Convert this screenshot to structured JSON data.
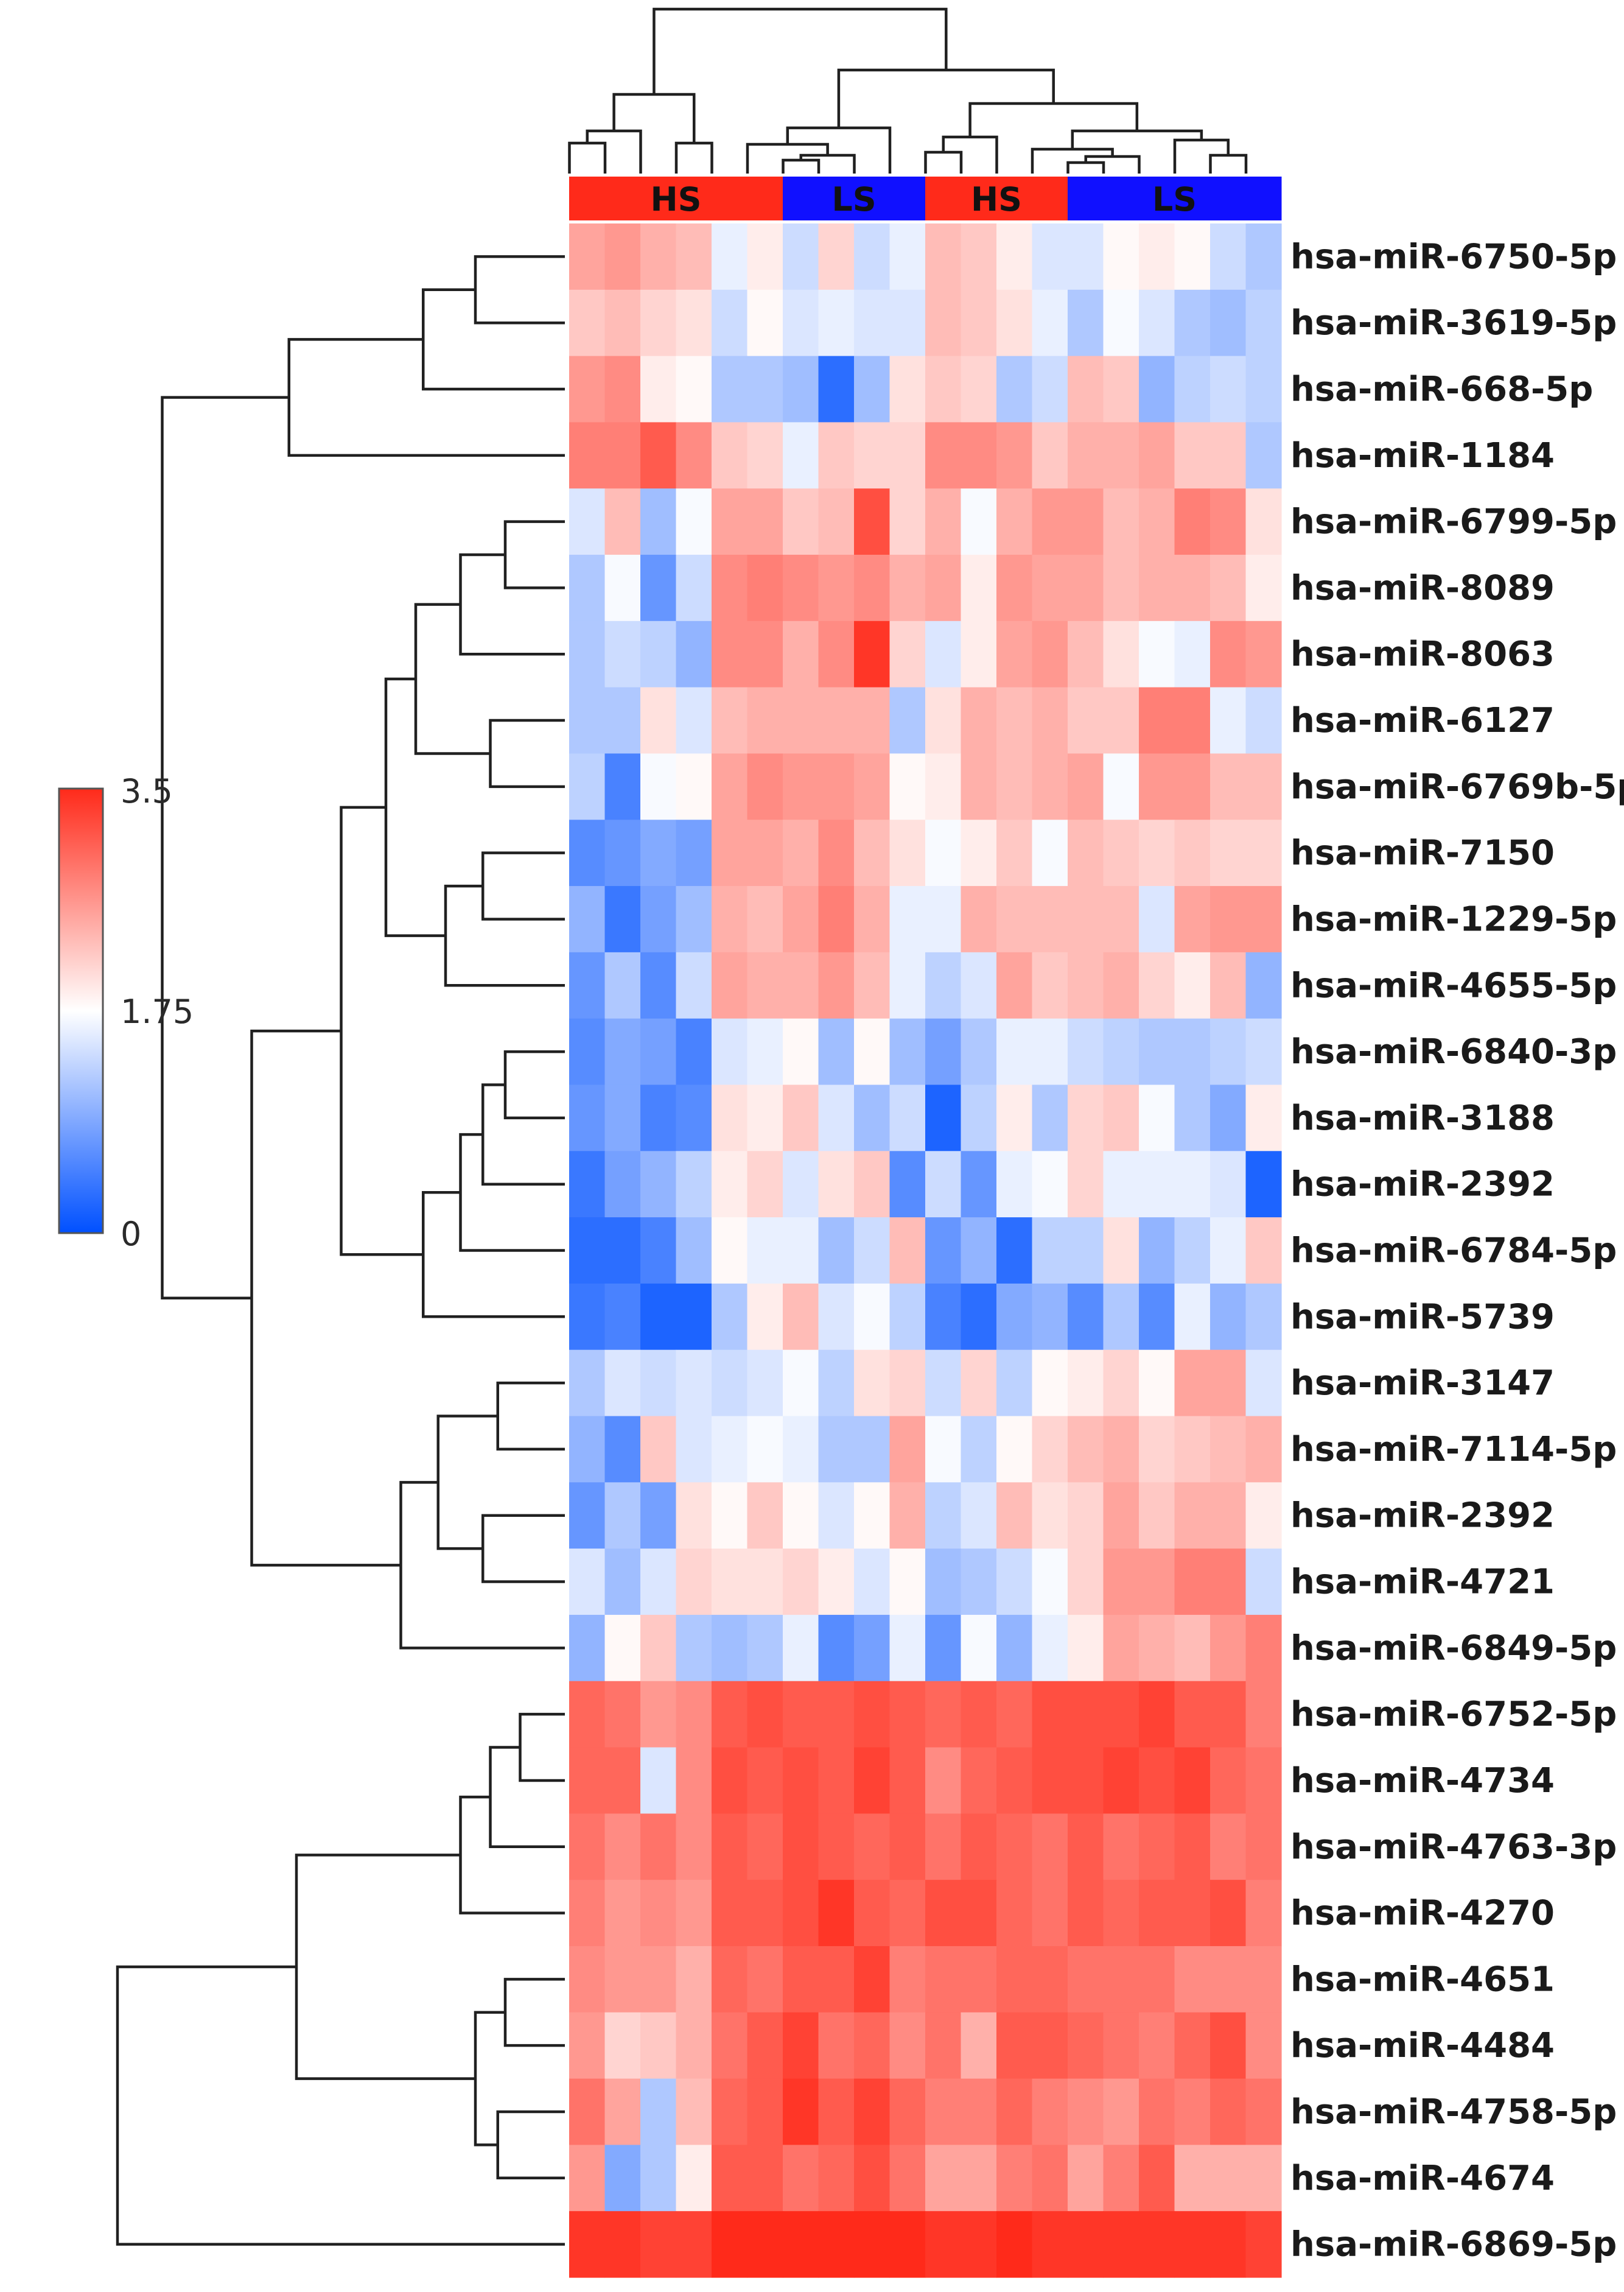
{
  "chart_data": {
    "type": "heatmap",
    "title": "",
    "xlabel": "",
    "ylabel": "",
    "color_scale": {
      "min": 0,
      "mid": 1.75,
      "max": 3.5,
      "tick_labels": [
        "3.5",
        "1.75",
        "0"
      ],
      "colors": {
        "low": "#0050ff",
        "mid": "#ffffff",
        "high": "#ff2a1a"
      }
    },
    "column_groups": [
      {
        "label": "HS",
        "columns": 6,
        "color": "#ff2a1a"
      },
      {
        "label": "LS",
        "columns": 4,
        "color": "#1010ff"
      },
      {
        "label": "HS",
        "columns": 4,
        "color": "#ff2a1a"
      },
      {
        "label": "LS",
        "columns": 6,
        "color": "#1010ff"
      }
    ],
    "rows": [
      "hsa-miR-6750-5p",
      "hsa-miR-3619-5p",
      "hsa-miR-668-5p",
      "hsa-miR-1184",
      "hsa-miR-6799-5p",
      "hsa-miR-8089",
      "hsa-miR-8063",
      "hsa-miR-6127",
      "hsa-miR-6769b-5p",
      "hsa-miR-7150",
      "hsa-miR-1229-5p",
      "hsa-miR-4655-5p",
      "hsa-miR-6840-3p",
      "hsa-miR-3188",
      "hsa-miR-2392",
      "hsa-miR-6784-5p",
      "hsa-miR-5739",
      "hsa-miR-3147",
      "hsa-miR-7114-5p",
      "hsa-miR-2392",
      "hsa-miR-4721",
      "hsa-miR-6849-5p",
      "hsa-miR-6752-5p",
      "hsa-miR-4734",
      "hsa-miR-4763-3p",
      "hsa-miR-4270",
      "hsa-miR-4651",
      "hsa-miR-4484",
      "hsa-miR-4758-5p",
      "hsa-miR-4674",
      "hsa-miR-6869-5p"
    ],
    "values": [
      [
        2.5,
        2.6,
        2.4,
        2.3,
        1.6,
        1.9,
        1.4,
        2.1,
        1.4,
        1.6,
        2.3,
        2.2,
        1.9,
        1.5,
        1.5,
        1.8,
        1.9,
        1.8,
        1.4,
        1.2
      ],
      [
        2.2,
        2.3,
        2.1,
        2.0,
        1.4,
        1.8,
        1.5,
        1.6,
        1.5,
        1.5,
        2.3,
        2.2,
        2.0,
        1.6,
        1.2,
        1.7,
        1.5,
        1.2,
        1.1,
        1.3
      ],
      [
        2.6,
        2.7,
        1.9,
        1.8,
        1.2,
        1.2,
        1.1,
        0.3,
        1.1,
        2.0,
        2.2,
        2.1,
        1.2,
        1.4,
        2.3,
        2.2,
        1.0,
        1.3,
        1.4,
        1.3
      ],
      [
        2.8,
        2.8,
        3.1,
        2.7,
        2.2,
        2.1,
        1.6,
        2.2,
        2.1,
        2.1,
        2.7,
        2.7,
        2.6,
        2.2,
        2.4,
        2.4,
        2.5,
        2.2,
        2.2,
        1.2
      ],
      [
        1.5,
        2.3,
        1.1,
        1.7,
        2.5,
        2.5,
        2.2,
        2.3,
        3.2,
        2.1,
        2.4,
        1.7,
        2.4,
        2.6,
        2.6,
        2.3,
        2.4,
        2.8,
        2.7,
        2.0
      ],
      [
        1.2,
        1.7,
        0.7,
        1.4,
        2.7,
        2.8,
        2.7,
        2.6,
        2.7,
        2.4,
        2.5,
        1.9,
        2.6,
        2.5,
        2.5,
        2.3,
        2.4,
        2.4,
        2.3,
        1.9
      ],
      [
        1.2,
        1.4,
        1.3,
        1.0,
        2.7,
        2.7,
        2.4,
        2.7,
        3.4,
        2.1,
        1.5,
        1.9,
        2.5,
        2.6,
        2.3,
        2.0,
        1.7,
        1.6,
        2.7,
        2.6
      ],
      [
        1.2,
        1.2,
        2.0,
        1.5,
        2.3,
        2.4,
        2.4,
        2.4,
        2.4,
        1.2,
        2.0,
        2.4,
        2.3,
        2.4,
        2.2,
        2.2,
        2.8,
        2.8,
        1.6,
        1.4
      ],
      [
        1.3,
        0.5,
        1.7,
        1.8,
        2.5,
        2.7,
        2.6,
        2.6,
        2.5,
        1.8,
        1.9,
        2.4,
        2.3,
        2.4,
        2.5,
        1.7,
        2.6,
        2.6,
        2.3,
        2.3
      ],
      [
        0.6,
        0.7,
        0.9,
        0.8,
        2.5,
        2.5,
        2.4,
        2.7,
        2.3,
        2.0,
        1.7,
        1.9,
        2.2,
        1.7,
        2.3,
        2.2,
        2.1,
        2.2,
        2.1,
        2.1
      ],
      [
        1.0,
        0.4,
        0.8,
        1.1,
        2.4,
        2.3,
        2.5,
        2.8,
        2.4,
        1.6,
        1.6,
        2.4,
        2.3,
        2.3,
        2.3,
        2.3,
        1.5,
        2.5,
        2.6,
        2.6
      ],
      [
        0.7,
        1.2,
        0.6,
        1.4,
        2.5,
        2.4,
        2.4,
        2.6,
        2.3,
        1.6,
        1.3,
        1.5,
        2.5,
        2.2,
        2.3,
        2.4,
        2.1,
        1.9,
        2.3,
        1.0
      ],
      [
        0.6,
        0.9,
        0.8,
        0.5,
        1.5,
        1.6,
        1.8,
        1.1,
        1.8,
        1.1,
        0.8,
        1.2,
        1.6,
        1.6,
        1.4,
        1.3,
        1.2,
        1.2,
        1.3,
        1.4
      ],
      [
        0.7,
        0.9,
        0.5,
        0.6,
        2.0,
        1.9,
        2.2,
        1.5,
        1.1,
        1.4,
        0.2,
        1.3,
        1.9,
        1.2,
        2.1,
        2.2,
        1.7,
        1.2,
        0.9,
        1.9
      ],
      [
        0.4,
        0.8,
        1.0,
        1.3,
        1.9,
        2.1,
        1.5,
        2.0,
        2.2,
        0.6,
        1.4,
        0.7,
        1.6,
        1.7,
        2.1,
        1.6,
        1.6,
        1.6,
        1.5,
        0.2
      ],
      [
        0.3,
        0.3,
        0.5,
        1.1,
        1.8,
        1.6,
        1.6,
        1.1,
        1.4,
        2.3,
        0.7,
        1.0,
        0.3,
        1.3,
        1.3,
        2.0,
        1.0,
        1.3,
        1.6,
        2.2
      ],
      [
        0.4,
        0.5,
        0.2,
        0.2,
        1.2,
        1.9,
        2.3,
        1.5,
        1.7,
        1.3,
        0.5,
        0.3,
        0.9,
        1.0,
        0.6,
        1.2,
        0.6,
        1.6,
        1.0,
        1.2
      ],
      [
        1.2,
        1.5,
        1.4,
        1.5,
        1.4,
        1.5,
        1.7,
        1.3,
        2.0,
        2.1,
        1.4,
        2.1,
        1.3,
        1.8,
        1.9,
        2.1,
        1.8,
        2.5,
        2.5,
        1.5
      ],
      [
        1.0,
        0.6,
        2.2,
        1.5,
        1.6,
        1.7,
        1.6,
        1.2,
        1.2,
        2.5,
        1.7,
        1.3,
        1.8,
        2.1,
        2.3,
        2.4,
        2.1,
        2.2,
        2.3,
        2.4
      ],
      [
        0.7,
        1.2,
        0.8,
        2.0,
        1.8,
        2.2,
        1.8,
        1.5,
        1.8,
        2.4,
        1.3,
        1.5,
        2.3,
        2.0,
        2.1,
        2.5,
        2.2,
        2.4,
        2.4,
        1.9
      ],
      [
        1.5,
        1.1,
        1.5,
        2.1,
        2.0,
        2.0,
        2.1,
        1.9,
        1.5,
        1.8,
        1.1,
        1.2,
        1.4,
        1.7,
        2.1,
        2.6,
        2.6,
        2.8,
        2.8,
        1.4
      ],
      [
        1.0,
        1.8,
        2.2,
        1.2,
        1.1,
        1.2,
        1.6,
        0.6,
        0.8,
        1.6,
        0.7,
        1.7,
        1.0,
        1.6,
        1.9,
        2.5,
        2.4,
        2.3,
        2.6,
        2.8
      ],
      [
        3.0,
        2.9,
        2.6,
        2.7,
        3.1,
        3.2,
        3.1,
        3.1,
        3.2,
        3.1,
        3.0,
        3.1,
        3.0,
        3.2,
        3.2,
        3.2,
        3.3,
        3.1,
        3.1,
        2.8
      ],
      [
        3.0,
        3.0,
        1.5,
        2.7,
        3.2,
        3.1,
        3.2,
        3.1,
        3.3,
        3.1,
        2.7,
        3.0,
        3.1,
        3.2,
        3.2,
        3.3,
        3.2,
        3.3,
        3.0,
        2.9
      ],
      [
        2.9,
        2.7,
        2.9,
        2.7,
        3.1,
        3.0,
        3.2,
        3.1,
        3.0,
        3.1,
        2.9,
        3.1,
        3.0,
        2.9,
        3.1,
        2.9,
        3.0,
        3.1,
        2.8,
        2.9
      ],
      [
        2.8,
        2.6,
        2.7,
        2.6,
        3.1,
        3.1,
        3.2,
        3.4,
        3.1,
        3.0,
        3.2,
        3.2,
        3.0,
        2.9,
        3.1,
        3.0,
        3.1,
        3.1,
        3.2,
        2.8
      ],
      [
        2.7,
        2.6,
        2.6,
        2.4,
        3.0,
        2.9,
        3.1,
        3.1,
        3.3,
        2.8,
        2.9,
        2.9,
        3.0,
        3.0,
        2.9,
        2.9,
        2.9,
        2.7,
        2.7,
        2.7
      ],
      [
        2.6,
        2.1,
        2.2,
        2.4,
        2.9,
        3.1,
        3.3,
        2.9,
        3.0,
        2.7,
        2.9,
        2.4,
        3.1,
        3.1,
        3.0,
        2.9,
        2.8,
        3.0,
        3.2,
        2.7
      ],
      [
        2.9,
        2.5,
        1.2,
        2.3,
        3.0,
        3.1,
        3.4,
        3.1,
        3.3,
        3.0,
        2.8,
        2.8,
        3.0,
        2.8,
        2.7,
        2.6,
        2.9,
        2.8,
        3.0,
        2.9
      ],
      [
        2.6,
        0.9,
        1.2,
        1.9,
        3.1,
        3.1,
        2.9,
        3.0,
        3.2,
        2.9,
        2.5,
        2.5,
        2.8,
        2.9,
        2.5,
        2.8,
        3.1,
        2.4,
        2.4,
        2.4
      ],
      [
        3.4,
        3.4,
        3.3,
        3.3,
        3.5,
        3.5,
        3.5,
        3.5,
        3.5,
        3.5,
        3.4,
        3.4,
        3.5,
        3.4,
        3.4,
        3.4,
        3.4,
        3.4,
        3.4,
        3.3
      ]
    ]
  }
}
